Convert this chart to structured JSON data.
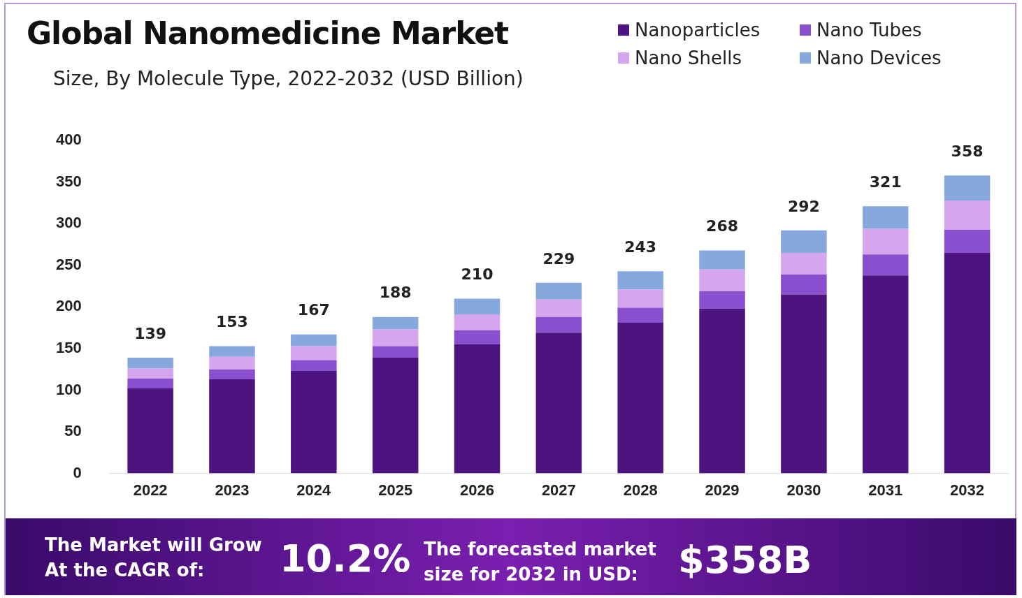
{
  "chart_data": {
    "type": "bar",
    "title": "Global Nanomedicine Market",
    "subtitle": "Size, By Molecule Type, 2022-2032 (USD Billion)",
    "categories": [
      "2022",
      "2023",
      "2024",
      "2025",
      "2026",
      "2027",
      "2028",
      "2029",
      "2030",
      "2031",
      "2032"
    ],
    "series": [
      {
        "name": "Nanoparticles",
        "color": "#4d1480",
        "values": [
          102,
          113,
          123,
          139,
          155,
          169,
          181,
          198,
          215,
          238,
          265
        ]
      },
      {
        "name": "Nano Tubes",
        "color": "#8a4fcf",
        "values": [
          12,
          12,
          13,
          14,
          17,
          19,
          18,
          21,
          24,
          25,
          28
        ]
      },
      {
        "name": "Nano Shells",
        "color": "#d5a6ee",
        "values": [
          12,
          15,
          17,
          20,
          19,
          21,
          22,
          26,
          26,
          31,
          35
        ]
      },
      {
        "name": "Nano Devices",
        "color": "#86a8dc",
        "values": [
          13,
          13,
          14,
          15,
          19,
          20,
          22,
          23,
          27,
          27,
          30
        ]
      }
    ],
    "stacked": true,
    "totals": [
      "139",
      "153",
      "167",
      "188",
      "210",
      "229",
      "243",
      "268",
      "292",
      "321",
      "358"
    ],
    "ylim": [
      0,
      400
    ],
    "yticks": [
      0,
      50,
      100,
      150,
      200,
      250,
      300,
      350,
      400
    ],
    "grid": false,
    "legend": "top right",
    "annotations": [
      "The Market will Grow At the CAGR of:",
      "10.2%",
      "The forecasted market size for 2032 in USD:",
      "$358B"
    ]
  }
}
